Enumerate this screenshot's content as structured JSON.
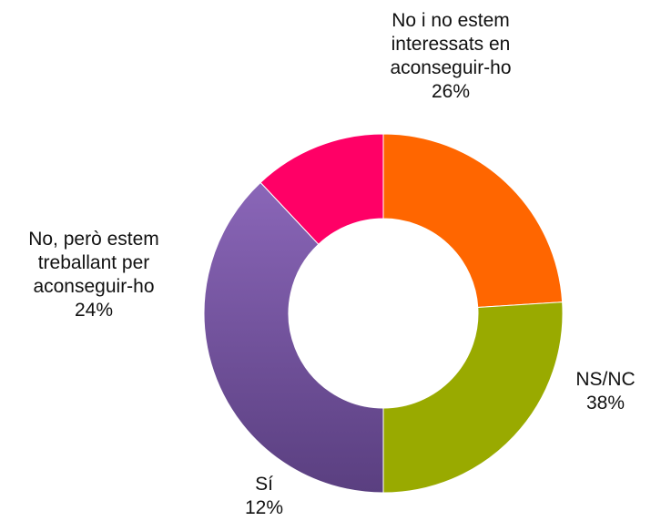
{
  "chart_data": {
    "type": "donut",
    "slices": [
      {
        "label": "NS/NC",
        "value": 38,
        "value_text": "38%",
        "color": "#6a4c93"
      },
      {
        "label": "Sí",
        "value": 12,
        "value_text": "12%",
        "color": "#ff0066"
      },
      {
        "label": "No, però estem treballant per aconseguir-ho",
        "value": 24,
        "value_text": "24%",
        "color": "#ff6600"
      },
      {
        "label": "No i no estem interessats en aconseguir-ho",
        "value": 26,
        "value_text": "26%",
        "color": "#99aa00"
      }
    ],
    "label_lines": [
      [
        "NS/NC"
      ],
      [
        "Sí"
      ],
      [
        "No, però estem",
        "treballant per",
        "aconseguir-ho"
      ],
      [
        "No i no estem",
        "interessats en",
        "aconseguir-ho"
      ]
    ],
    "start": "bottom",
    "direction": "clockwise"
  }
}
